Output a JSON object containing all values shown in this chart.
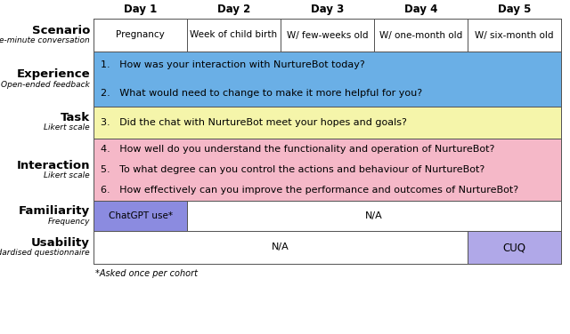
{
  "days": [
    "Day 1",
    "Day 2",
    "Day 3",
    "Day 4",
    "Day 5"
  ],
  "scenario_cells": [
    "Pregnancy",
    "Week of child birth",
    "W/ few-weeks old",
    "W/ one-month old",
    "W/ six-month old"
  ],
  "experience_questions": [
    "1.   How was your interaction with NurtureBot today?",
    "2.   What would need to change to make it more helpful for you?"
  ],
  "task_questions": [
    "3.   Did the chat with NurtureBot meet your hopes and goals?"
  ],
  "interaction_questions": [
    "4.   How well do you understand the functionality and operation of NurtureBot?",
    "5.   To what degree can you control the actions and behaviour of NurtureBot?",
    "6.   How effectively can you improve the performance and outcomes of NurtureBot?"
  ],
  "row_labels": [
    "Scenario",
    "Experience",
    "Task",
    "Interaction",
    "Familiarity",
    "Usability"
  ],
  "row_sublabels": [
    "Five-minute conversation",
    "Open-ended feedback",
    "Likert scale",
    "Likert scale",
    "Frequency",
    "Standardised questionnaire"
  ],
  "blue_color": "#6aafe6",
  "yellow_color": "#f5f5aa",
  "pink_color": "#f5b8c8",
  "purple_color": "#8b8be0",
  "light_purple_color": "#b0a8e8",
  "white_color": "#ffffff",
  "bg_color": "#ffffff",
  "border_color": "#555555",
  "text_color": "#000000",
  "footnote": "*Asked once per cohort"
}
